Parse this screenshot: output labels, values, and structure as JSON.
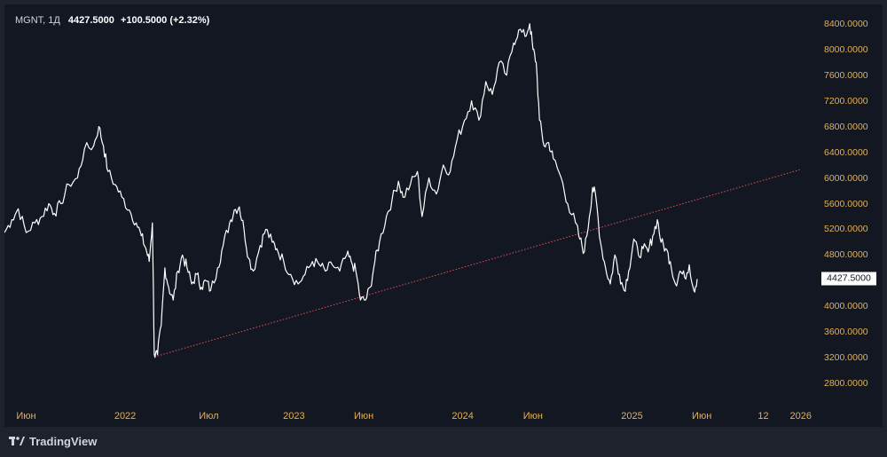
{
  "legend": {
    "symbol": "MGNT, 1Д",
    "last": "4427.5000",
    "change": "+100.5000 (+2.32%)"
  },
  "brand": {
    "name": "TradingView",
    "icon": "tradingview-logo-icon"
  },
  "colors": {
    "background": "#131722",
    "frame": "#1e222d",
    "line": "#ffffff",
    "trendline": "#e05252",
    "axis_text": "#e8b04a"
  },
  "chart_data": {
    "type": "line",
    "title": "",
    "xlabel": "",
    "ylabel": "",
    "interval": "1Д",
    "x_range": [
      "2021-04-15",
      "2026-02-05"
    ],
    "ylim": [
      2500,
      8700
    ],
    "y_ticks": [
      "8400.0000",
      "8000.0000",
      "7600.0000",
      "7200.0000",
      "6800.0000",
      "6400.0000",
      "6000.0000",
      "5600.0000",
      "5200.0000",
      "4800.0000",
      "4400.0000",
      "4000.0000",
      "3600.0000",
      "3200.0000",
      "2800.0000"
    ],
    "x_ticks": [
      {
        "label": "Июн",
        "date": "2021-06-01"
      },
      {
        "label": "2022",
        "date": "2022-01-01"
      },
      {
        "label": "Июл",
        "date": "2022-07-01"
      },
      {
        "label": "2023",
        "date": "2023-01-01"
      },
      {
        "label": "Июн",
        "date": "2023-06-01"
      },
      {
        "label": "2024",
        "date": "2024-01-01"
      },
      {
        "label": "Июн",
        "date": "2024-06-01"
      },
      {
        "label": "2025",
        "date": "2025-01-01"
      },
      {
        "label": "Июн",
        "date": "2025-06-01"
      },
      {
        "label": "12",
        "date": "2025-10-12"
      },
      {
        "label": "2026",
        "date": "2026-01-01"
      }
    ],
    "last_price_label": "4427.5000",
    "grid": false,
    "series": [
      {
        "values": [
          [
            "2021-04-15",
            5150
          ],
          [
            "2021-05-01",
            5350
          ],
          [
            "2021-05-15",
            5520
          ],
          [
            "2021-06-01",
            5150
          ],
          [
            "2021-06-20",
            5300
          ],
          [
            "2021-07-05",
            5400
          ],
          [
            "2021-07-20",
            5600
          ],
          [
            "2021-08-01",
            5450
          ],
          [
            "2021-08-15",
            5600
          ],
          [
            "2021-09-01",
            5900
          ],
          [
            "2021-09-20",
            6000
          ],
          [
            "2021-10-05",
            6450
          ],
          [
            "2021-10-25",
            6500
          ],
          [
            "2021-11-05",
            6800
          ],
          [
            "2021-11-15",
            6500
          ],
          [
            "2021-11-25",
            6100
          ],
          [
            "2021-12-10",
            5900
          ],
          [
            "2021-12-25",
            5700
          ],
          [
            "2022-01-10",
            5500
          ],
          [
            "2022-01-25",
            5300
          ],
          [
            "2022-02-05",
            5100
          ],
          [
            "2022-02-15",
            4900
          ],
          [
            "2022-02-22",
            4700
          ],
          [
            "2022-03-01",
            5300
          ],
          [
            "2022-03-05",
            3250
          ],
          [
            "2022-03-12",
            3250
          ],
          [
            "2022-03-20",
            3700
          ],
          [
            "2022-03-28",
            4600
          ],
          [
            "2022-04-05",
            4300
          ],
          [
            "2022-04-15",
            4100
          ],
          [
            "2022-04-25",
            4550
          ],
          [
            "2022-05-05",
            4800
          ],
          [
            "2022-05-15",
            4600
          ],
          [
            "2022-05-25",
            4350
          ],
          [
            "2022-06-05",
            4500
          ],
          [
            "2022-06-15",
            4300
          ],
          [
            "2022-06-25",
            4400
          ],
          [
            "2022-07-05",
            4250
          ],
          [
            "2022-07-20",
            4600
          ],
          [
            "2022-08-01",
            4950
          ],
          [
            "2022-08-15",
            5300
          ],
          [
            "2022-08-25",
            5500
          ],
          [
            "2022-09-05",
            5550
          ],
          [
            "2022-09-15",
            5200
          ],
          [
            "2022-09-25",
            4750
          ],
          [
            "2022-10-05",
            4550
          ],
          [
            "2022-10-20",
            4950
          ],
          [
            "2022-11-01",
            5200
          ],
          [
            "2022-11-15",
            5000
          ],
          [
            "2022-11-25",
            4900
          ],
          [
            "2022-12-10",
            4700
          ],
          [
            "2022-12-25",
            4500
          ],
          [
            "2023-01-10",
            4350
          ],
          [
            "2023-01-25",
            4500
          ],
          [
            "2023-02-10",
            4700
          ],
          [
            "2023-02-25",
            4650
          ],
          [
            "2023-03-10",
            4550
          ],
          [
            "2023-03-25",
            4650
          ],
          [
            "2023-04-10",
            4550
          ],
          [
            "2023-04-25",
            4800
          ],
          [
            "2023-05-05",
            4700
          ],
          [
            "2023-05-15",
            4550
          ],
          [
            "2023-05-25",
            4100
          ],
          [
            "2023-06-05",
            4100
          ],
          [
            "2023-06-15",
            4300
          ],
          [
            "2023-06-25",
            4700
          ],
          [
            "2023-07-05",
            5000
          ],
          [
            "2023-07-20",
            5400
          ],
          [
            "2023-08-01",
            5650
          ],
          [
            "2023-08-15",
            5950
          ],
          [
            "2023-08-25",
            5700
          ],
          [
            "2023-09-10",
            5900
          ],
          [
            "2023-09-25",
            6100
          ],
          [
            "2023-10-05",
            5400
          ],
          [
            "2023-10-20",
            6000
          ],
          [
            "2023-11-05",
            5750
          ],
          [
            "2023-11-20",
            6200
          ],
          [
            "2023-12-05",
            6100
          ],
          [
            "2023-12-20",
            6600
          ],
          [
            "2024-01-05",
            6900
          ],
          [
            "2024-01-20",
            7200
          ],
          [
            "2024-02-05",
            6900
          ],
          [
            "2024-02-20",
            7500
          ],
          [
            "2024-03-05",
            7300
          ],
          [
            "2024-03-20",
            7800
          ],
          [
            "2024-04-05",
            7600
          ],
          [
            "2024-04-20",
            8100
          ],
          [
            "2024-05-01",
            8300
          ],
          [
            "2024-05-15",
            8200
          ],
          [
            "2024-05-25",
            8400
          ],
          [
            "2024-06-01",
            8000
          ],
          [
            "2024-06-08",
            7800
          ],
          [
            "2024-06-15",
            6900
          ],
          [
            "2024-06-25",
            6500
          ],
          [
            "2024-07-05",
            6550
          ],
          [
            "2024-07-15",
            6300
          ],
          [
            "2024-08-01",
            6000
          ],
          [
            "2024-08-15",
            5600
          ],
          [
            "2024-09-01",
            5300
          ],
          [
            "2024-09-10",
            5050
          ],
          [
            "2024-09-20",
            4850
          ],
          [
            "2024-10-01",
            5400
          ],
          [
            "2024-10-08",
            5850
          ],
          [
            "2024-10-15",
            5700
          ],
          [
            "2024-10-25",
            5000
          ],
          [
            "2024-11-05",
            4600
          ],
          [
            "2024-11-15",
            4350
          ],
          [
            "2024-11-25",
            4800
          ],
          [
            "2024-12-05",
            4500
          ],
          [
            "2024-12-15",
            4250
          ],
          [
            "2024-12-25",
            4550
          ],
          [
            "2025-01-05",
            5050
          ],
          [
            "2025-01-15",
            4800
          ],
          [
            "2025-01-25",
            4900
          ],
          [
            "2025-02-05",
            4850
          ],
          [
            "2025-02-15",
            5100
          ],
          [
            "2025-02-25",
            5350
          ],
          [
            "2025-03-05",
            5000
          ],
          [
            "2025-03-15",
            4900
          ],
          [
            "2025-03-25",
            4700
          ],
          [
            "2025-04-05",
            4350
          ],
          [
            "2025-04-15",
            4550
          ],
          [
            "2025-04-25",
            4450
          ],
          [
            "2025-05-05",
            4650
          ],
          [
            "2025-05-15",
            4250
          ],
          [
            "2025-05-22",
            4427.5
          ]
        ]
      }
    ],
    "trendline": {
      "style": "dotted",
      "from": [
        "2022-03-12",
        3230
      ],
      "to": [
        "2025-12-31",
        6130
      ]
    }
  }
}
